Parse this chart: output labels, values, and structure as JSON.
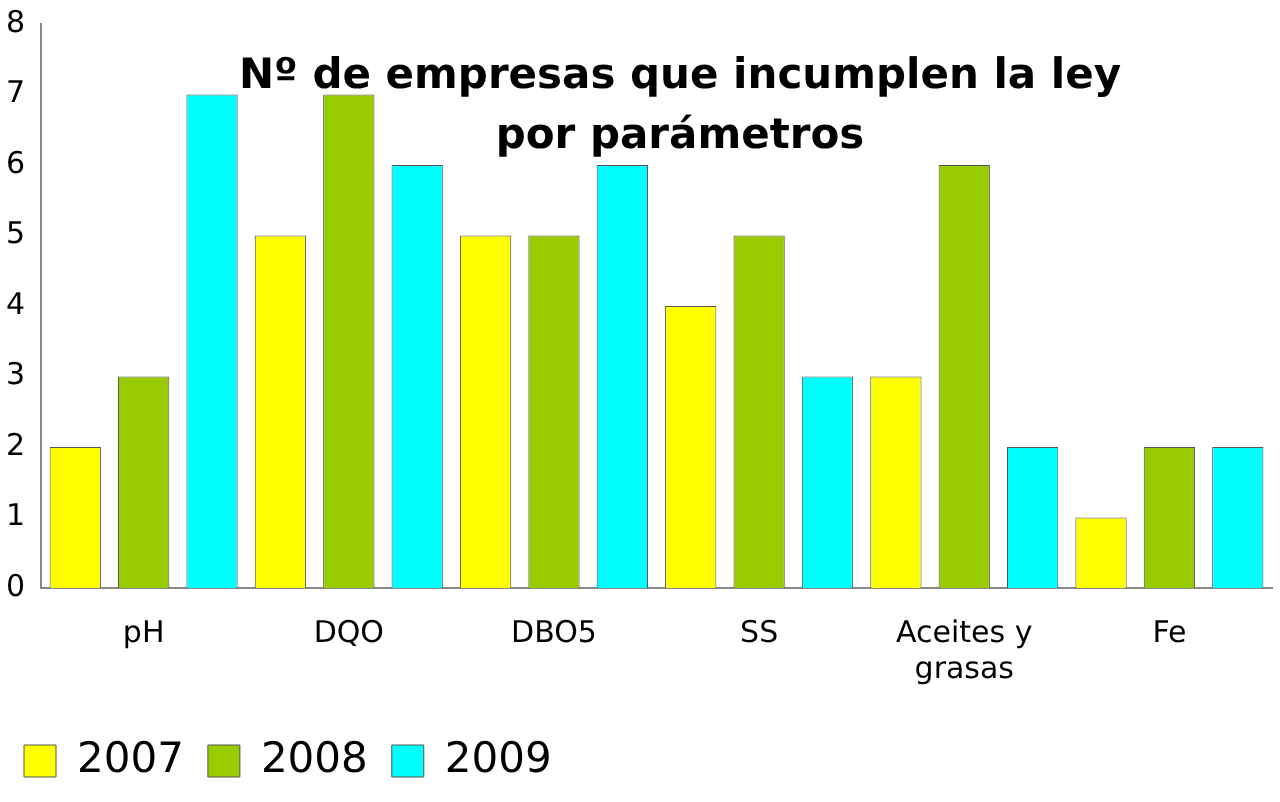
{
  "chart_data": {
    "type": "bar",
    "title": "Nº de empresas que incumplen la ley por parámetros",
    "categories": [
      "pH",
      "DQO",
      "DBO5",
      "SS",
      "Aceites y grasas",
      "Fe"
    ],
    "series": [
      {
        "name": "2007",
        "color": "#ffff00",
        "values": [
          2,
          5,
          5,
          4,
          3,
          1
        ]
      },
      {
        "name": "2008",
        "color": "#99cc00",
        "values": [
          3,
          7,
          5,
          5,
          6,
          2
        ]
      },
      {
        "name": "2009",
        "color": "#00ffff",
        "values": [
          7,
          6,
          6,
          3,
          2,
          2
        ]
      }
    ],
    "ylim": [
      0,
      8
    ],
    "yticks": [
      0,
      1,
      2,
      3,
      4,
      5,
      6,
      7,
      8
    ],
    "grid": false,
    "legend": "bottom left"
  }
}
